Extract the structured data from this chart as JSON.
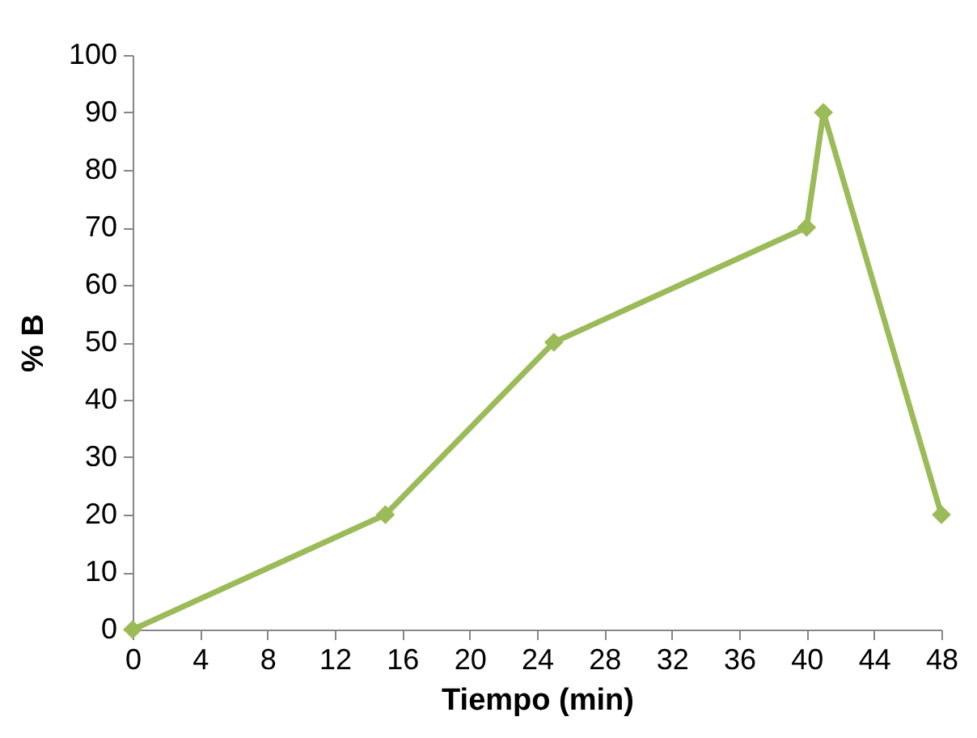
{
  "chart_data": {
    "type": "line",
    "xlabel": "Tiempo (min)",
    "ylabel": "% B",
    "xlim": [
      0,
      48
    ],
    "xticks": [
      0,
      4,
      8,
      12,
      16,
      20,
      24,
      28,
      32,
      36,
      40,
      44,
      48
    ],
    "ylim": [
      0,
      100
    ],
    "yticks": [
      0,
      10,
      20,
      30,
      40,
      50,
      60,
      70,
      80,
      90,
      100
    ],
    "grid": false,
    "marker": "diamond",
    "line_style": "solid",
    "series": [
      {
        "color": "#9bbb59",
        "x": [
          0,
          15,
          25,
          40,
          41,
          48
        ],
        "values": [
          0,
          20,
          50,
          70,
          90,
          20
        ]
      }
    ]
  }
}
